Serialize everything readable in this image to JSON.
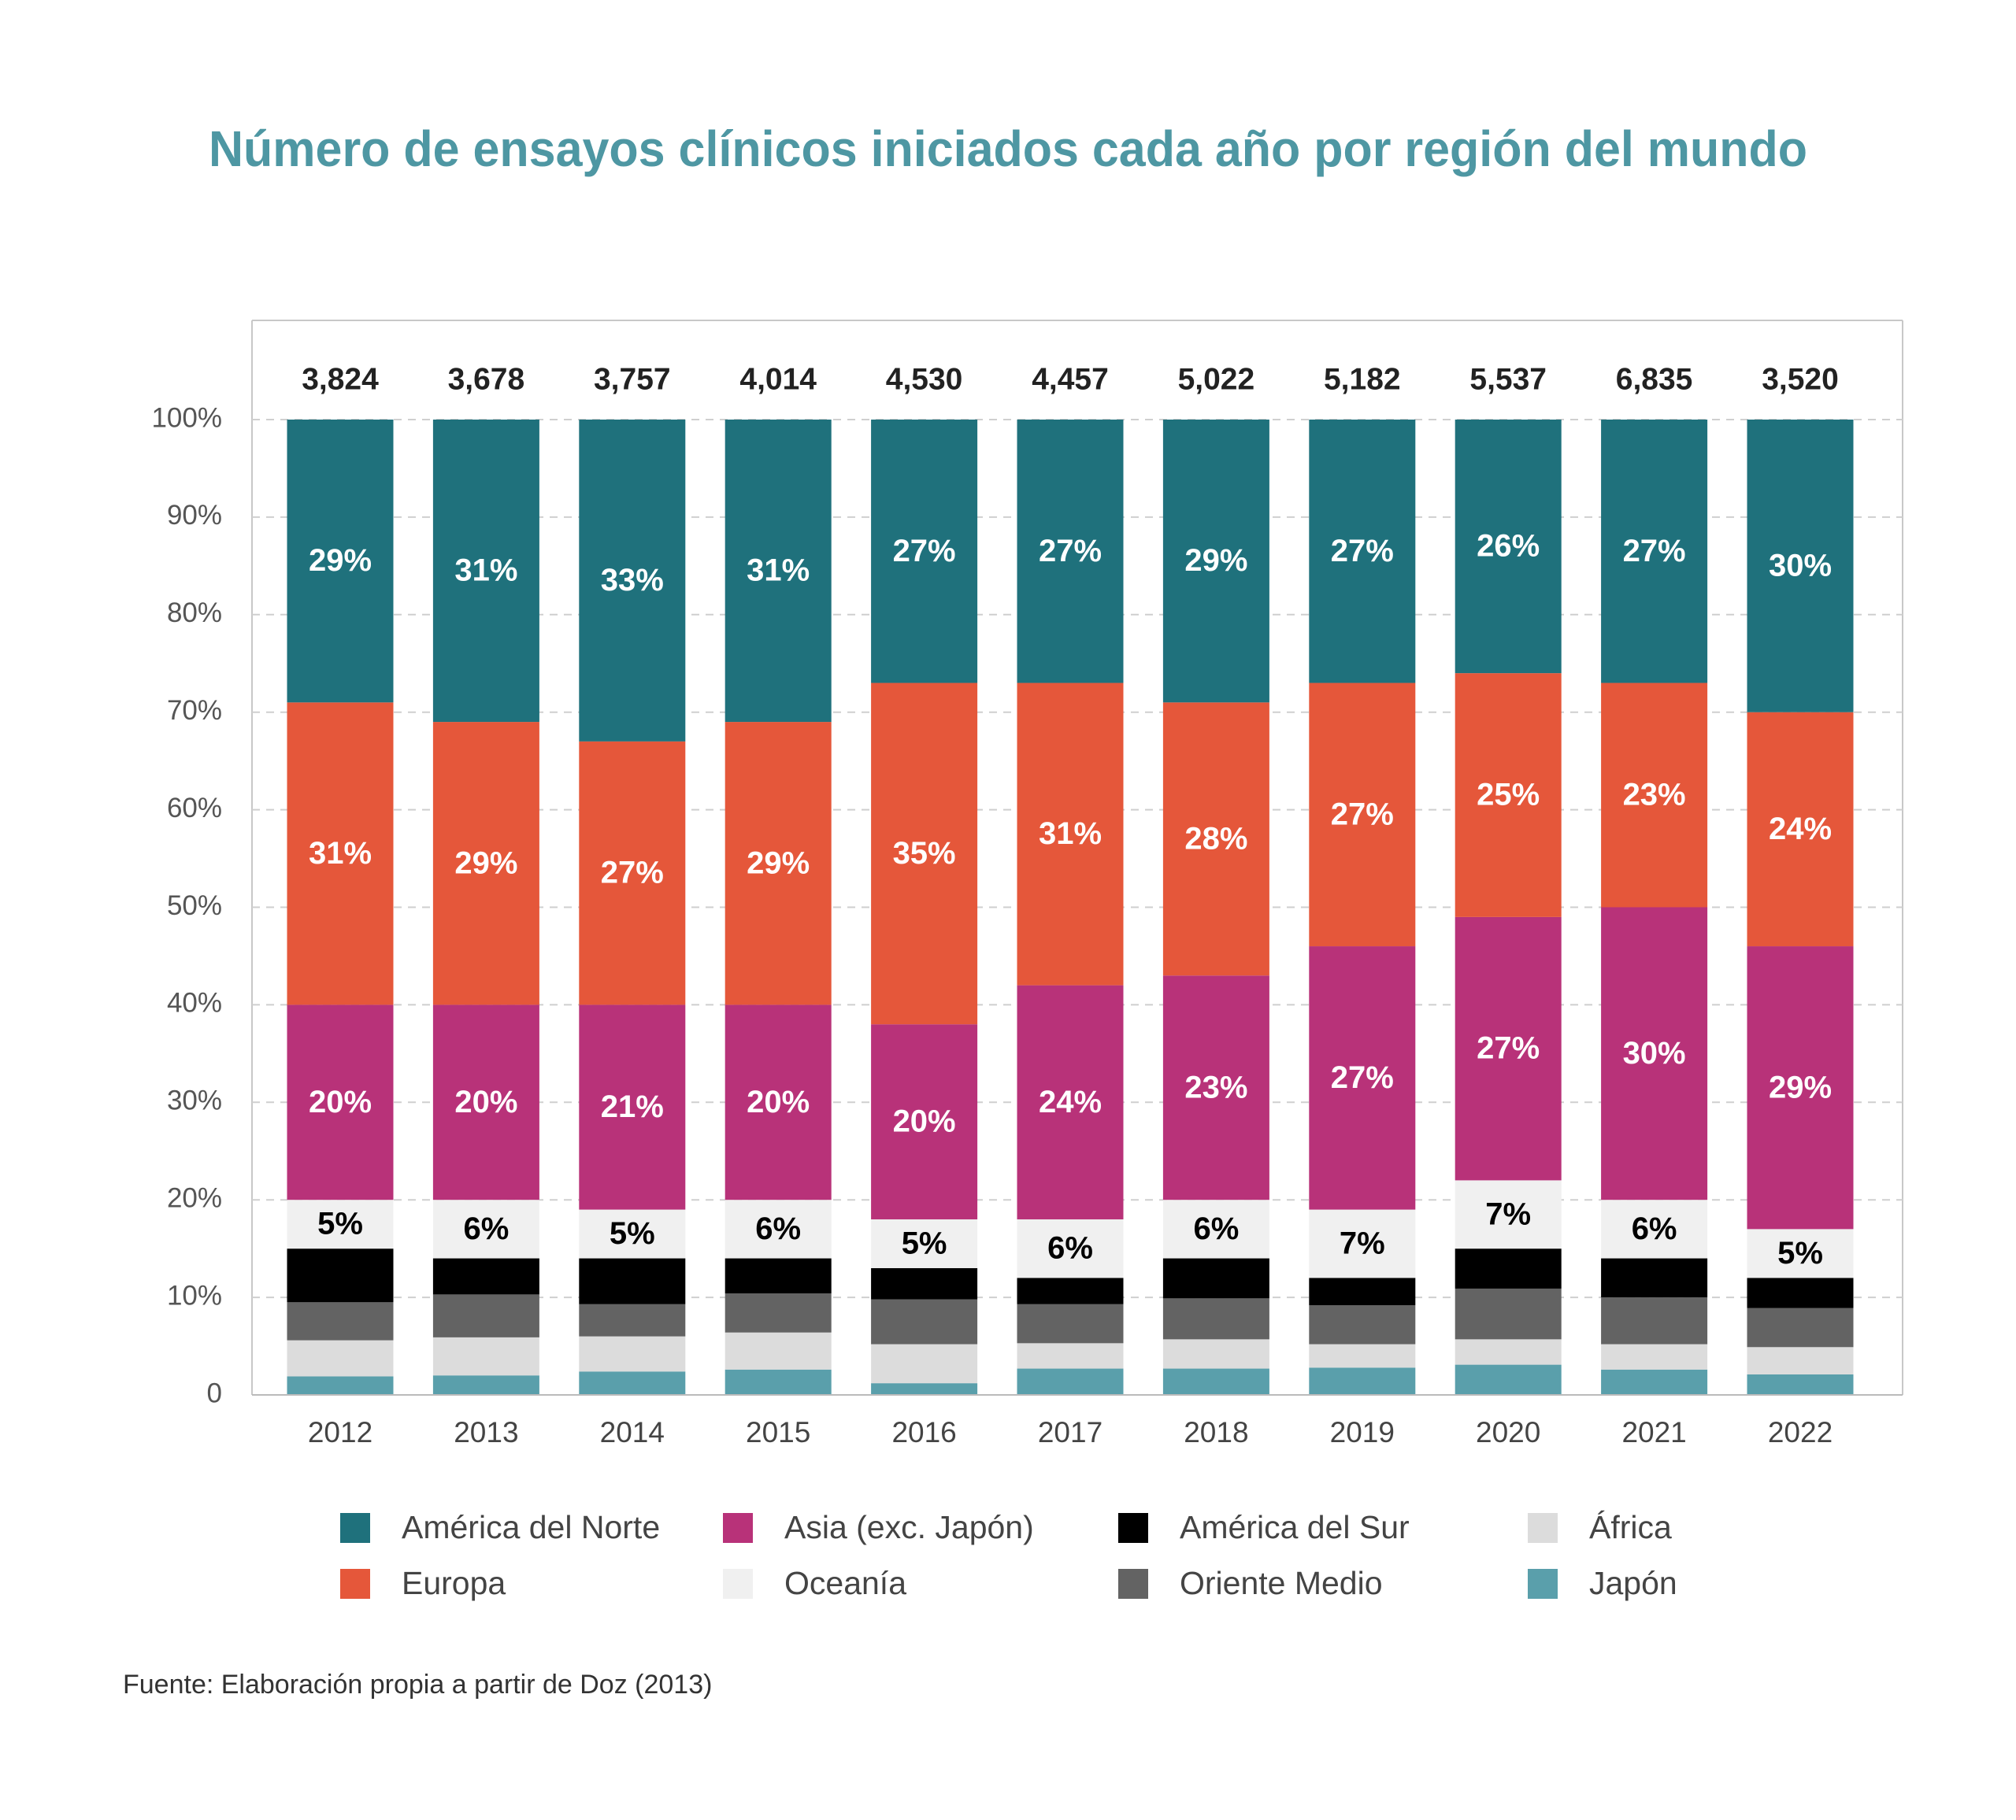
{
  "chart_data": {
    "type": "stacked_bar",
    "title": "Número de ensayos clínicos iniciados cada año por región del mundo",
    "source": "Fuente: Elaboración propia a partir de Doz (2013)",
    "categories": [
      "2012",
      "2013",
      "2014",
      "2015",
      "2016",
      "2017",
      "2018",
      "2019",
      "2020",
      "2021",
      "2022"
    ],
    "totals": {
      "values": [
        3824,
        3678,
        3757,
        4014,
        4530,
        4457,
        5022,
        5182,
        5537,
        6835,
        3520
      ],
      "value_labels": [
        "3,824",
        "3,678",
        "3,757",
        "4,014",
        "4,530",
        "4,457",
        "5,022",
        "5,182",
        "5,537",
        "6,835",
        "3,520"
      ]
    },
    "ylim": [
      0,
      100
    ],
    "yticks": [
      0,
      {
        "value": 10,
        "label": "10%"
      },
      {
        "value": 20,
        "label": "20%"
      },
      {
        "value": 30,
        "label": "30%"
      },
      {
        "value": 40,
        "label": "40%"
      },
      {
        "value": 50,
        "label": "50%"
      },
      {
        "value": 60,
        "label": "60%"
      },
      {
        "value": 70,
        "label": "70%"
      },
      {
        "value": 80,
        "label": "80%"
      },
      {
        "value": 90,
        "label": "90%"
      },
      {
        "value": 100,
        "label": "100%"
      }
    ],
    "grid": true,
    "series": [
      {
        "name": "Japón",
        "color": "#5a9fab",
        "values": [
          1.9,
          2.0,
          2.4,
          2.6,
          1.2,
          2.7,
          2.7,
          2.8,
          3.1,
          2.6,
          2.1
        ]
      },
      {
        "name": "África",
        "color": "#dcdcdc",
        "values": [
          3.7,
          3.9,
          3.6,
          3.8,
          4.0,
          2.6,
          3.0,
          2.4,
          2.6,
          2.6,
          2.8
        ]
      },
      {
        "name": "Oriente Medio",
        "color": "#636363",
        "values": [
          3.9,
          4.4,
          3.3,
          4.0,
          4.6,
          4.0,
          4.2,
          4.0,
          5.2,
          4.8,
          4.0
        ]
      },
      {
        "name": "América del Sur",
        "color": "#000000",
        "values": [
          5.5,
          3.7,
          4.7,
          3.6,
          3.2,
          2.7,
          4.1,
          2.8,
          4.1,
          4.0,
          3.1
        ]
      },
      {
        "name": "Oceanía",
        "color": "#f0f0f0",
        "label_color": "#000000",
        "values": [
          5,
          6,
          5,
          6,
          5,
          6,
          6,
          7,
          7,
          6,
          5
        ],
        "value_labels": [
          "5%",
          "6%",
          "5%",
          "6%",
          "5%",
          "6%",
          "6%",
          "7%",
          "7%",
          "6%",
          "5%"
        ]
      },
      {
        "name": "Asia (exc. Japón)",
        "color": "#b83279",
        "label_color": "#ffffff",
        "values": [
          20,
          20,
          21,
          20,
          20,
          24,
          23,
          27,
          27,
          30,
          29
        ],
        "value_labels": [
          "20%",
          "20%",
          "21%",
          "20%",
          "20%",
          "24%",
          "23%",
          "27%",
          "27%",
          "30%",
          "29%"
        ]
      },
      {
        "name": "Europa",
        "color": "#e5573a",
        "label_color": "#ffffff",
        "values": [
          31,
          29,
          27,
          29,
          35,
          31,
          28,
          27,
          25,
          23,
          24
        ],
        "value_labels": [
          "31%",
          "29%",
          "27%",
          "29%",
          "35%",
          "31%",
          "28%",
          "27%",
          "25%",
          "23%",
          "24%"
        ]
      },
      {
        "name": "América del Norte",
        "color": "#1f717c",
        "label_color": "#ffffff",
        "values": [
          29,
          31,
          33,
          31,
          27,
          27,
          29,
          27,
          26,
          27,
          30
        ],
        "value_labels": [
          "29%",
          "31%",
          "33%",
          "31%",
          "27%",
          "27%",
          "29%",
          "27%",
          "26%",
          "27%",
          "30%"
        ]
      }
    ]
  }
}
